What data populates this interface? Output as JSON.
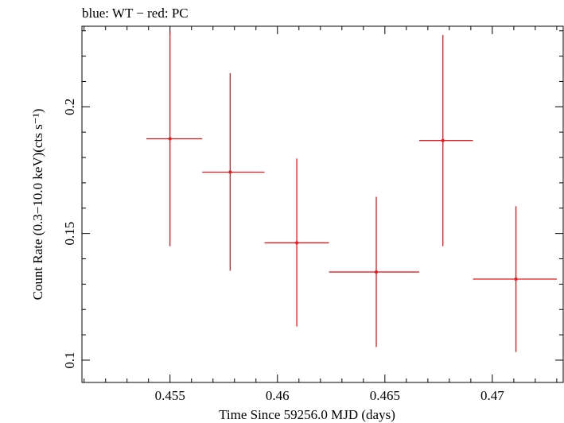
{
  "chart_data": {
    "type": "scatter",
    "title": "blue: WT − red: PC",
    "xlabel": "Time Since 59256.0 MJD (days)",
    "ylabel": "Count Rate (0.3−10.0 keV)(cts s⁻¹)",
    "xlim": [
      0.4509,
      0.4733
    ],
    "ylim": [
      0.0912,
      0.2318
    ],
    "x_ticks": [
      0.455,
      0.46,
      0.465,
      0.47
    ],
    "x_tick_labels": [
      "0.455",
      "0.46",
      "0.465",
      "0.47"
    ],
    "y_ticks": [
      0.1,
      0.15,
      0.2
    ],
    "y_tick_labels": [
      "0.1",
      "0.15",
      "0.2"
    ],
    "grid": false,
    "series": [
      {
        "color": "#e8191b",
        "points": [
          {
            "x": 0.455,
            "xerr_lo": 0.4539,
            "xerr_hi": 0.4565,
            "y": 0.1874,
            "yerr_lo": 0.145,
            "yerr_hi": 0.2298
          },
          {
            "x": 0.4578,
            "xerr_lo": 0.4565,
            "xerr_hi": 0.4594,
            "y": 0.1742,
            "yerr_lo": 0.1353,
            "yerr_hi": 0.2133
          },
          {
            "x": 0.4609,
            "xerr_lo": 0.4594,
            "xerr_hi": 0.4624,
            "y": 0.1463,
            "yerr_lo": 0.1133,
            "yerr_hi": 0.1796
          },
          {
            "x": 0.4646,
            "xerr_lo": 0.4624,
            "xerr_hi": 0.4666,
            "y": 0.1348,
            "yerr_lo": 0.1052,
            "yerr_hi": 0.1645
          },
          {
            "x": 0.4677,
            "xerr_lo": 0.4666,
            "xerr_hi": 0.4691,
            "y": 0.1867,
            "yerr_lo": 0.145,
            "yerr_hi": 0.2284
          },
          {
            "x": 0.4711,
            "xerr_lo": 0.4691,
            "xerr_hi": 0.473,
            "y": 0.132,
            "yerr_lo": 0.1032,
            "yerr_hi": 0.1608
          }
        ]
      }
    ]
  }
}
